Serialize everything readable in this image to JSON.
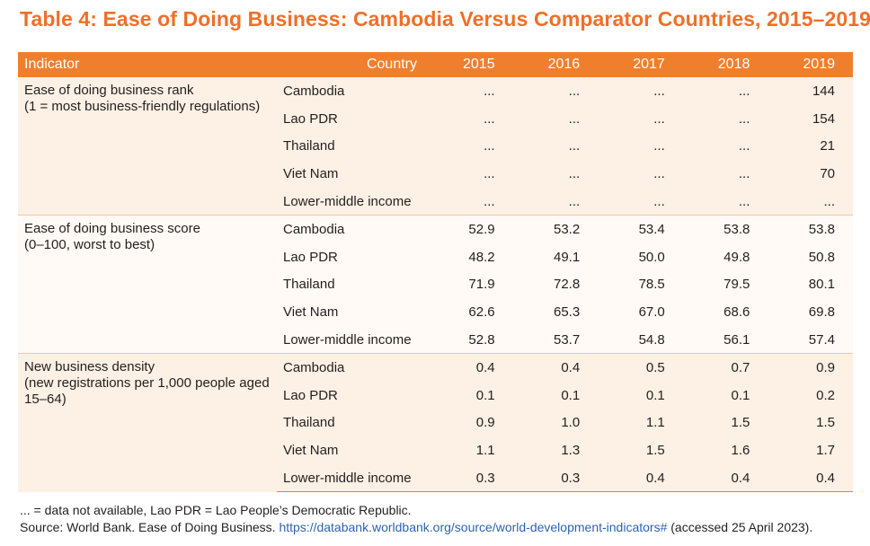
{
  "title": "Table 4: Ease of Doing Business: Cambodia Versus Comparator Countries, 2015–2019",
  "header": {
    "indicator": "Indicator",
    "country": "Country",
    "years": [
      "2015",
      "2016",
      "2017",
      "2018",
      "2019"
    ]
  },
  "groups": [
    {
      "indicator_line1": "Ease of doing business rank",
      "indicator_line2": "(1 = most business-friendly regulations)",
      "rows": [
        {
          "country": "Cambodia",
          "values": [
            "...",
            "...",
            "...",
            "...",
            "144"
          ]
        },
        {
          "country": "Lao PDR",
          "values": [
            "...",
            "...",
            "...",
            "...",
            "154"
          ]
        },
        {
          "country": "Thailand",
          "values": [
            "...",
            "...",
            "...",
            "...",
            "21"
          ]
        },
        {
          "country": "Viet Nam",
          "values": [
            "...",
            "...",
            "...",
            "...",
            "70"
          ]
        },
        {
          "country": "Lower-middle income",
          "values": [
            "...",
            "...",
            "...",
            "...",
            "..."
          ]
        }
      ]
    },
    {
      "indicator_line1": "Ease of doing business score",
      "indicator_line2": "(0–100, worst to best)",
      "rows": [
        {
          "country": "Cambodia",
          "values": [
            "52.9",
            "53.2",
            "53.4",
            "53.8",
            "53.8"
          ]
        },
        {
          "country": "Lao PDR",
          "values": [
            "48.2",
            "49.1",
            "50.0",
            "49.8",
            "50.8"
          ]
        },
        {
          "country": "Thailand",
          "values": [
            "71.9",
            "72.8",
            "78.5",
            "79.5",
            "80.1"
          ]
        },
        {
          "country": "Viet Nam",
          "values": [
            "62.6",
            "65.3",
            "67.0",
            "68.6",
            "69.8"
          ]
        },
        {
          "country": "Lower-middle income",
          "values": [
            "52.8",
            "53.7",
            "54.8",
            "56.1",
            "57.4"
          ]
        }
      ]
    },
    {
      "indicator_line1": "New business density",
      "indicator_line2": "(new registrations per 1,000 people aged 15–64)",
      "rows": [
        {
          "country": "Cambodia",
          "values": [
            "0.4",
            "0.4",
            "0.5",
            "0.7",
            "0.9"
          ]
        },
        {
          "country": "Lao PDR",
          "values": [
            "0.1",
            "0.1",
            "0.1",
            "0.1",
            "0.2"
          ]
        },
        {
          "country": "Thailand",
          "values": [
            "0.9",
            "1.0",
            "1.1",
            "1.5",
            "1.5"
          ]
        },
        {
          "country": "Viet Nam",
          "values": [
            "1.1",
            "1.3",
            "1.5",
            "1.6",
            "1.7"
          ]
        },
        {
          "country": "Lower-middle income",
          "values": [
            "0.3",
            "0.3",
            "0.4",
            "0.4",
            "0.4"
          ]
        }
      ]
    }
  ],
  "footnote": {
    "note": "... = data not available, Lao PDR = Lao People’s Democratic Republic.",
    "source_prefix": "Source: World Bank. Ease of Doing Business.",
    "source_link": "https://databank.worldbank.org/source/world-development-indicators#",
    "source_suffix": "(accessed 25 April 2023)."
  },
  "colors": {
    "accent": "#ef6f2a",
    "header_bg": "#f07f2d",
    "band_bg": "#fdf0e4",
    "link": "#2d63b1"
  }
}
